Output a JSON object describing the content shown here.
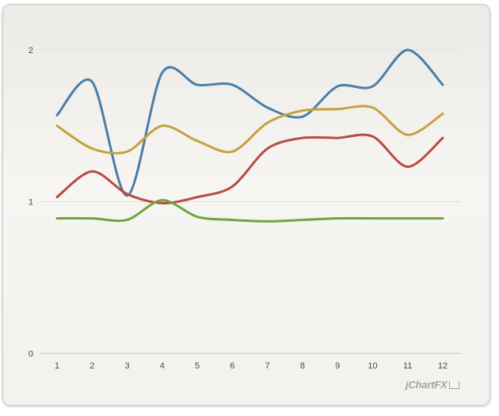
{
  "chart_data": {
    "type": "line",
    "title": "",
    "xlabel": "",
    "ylabel": "",
    "categories": [
      "1",
      "2",
      "3",
      "4",
      "5",
      "6",
      "7",
      "8",
      "9",
      "10",
      "11",
      "12"
    ],
    "ylim": [
      0,
      2
    ],
    "y_ticks": [
      "0",
      "1",
      "2"
    ],
    "grid": "horizontal",
    "smooth": true,
    "series": [
      {
        "color": "#4a7ea6",
        "values": [
          1.57,
          1.79,
          1.04,
          1.85,
          1.77,
          1.77,
          1.62,
          1.56,
          1.76,
          1.76,
          2.0,
          1.77
        ]
      },
      {
        "color": "#c4a23e",
        "values": [
          1.5,
          1.35,
          1.33,
          1.5,
          1.4,
          1.33,
          1.52,
          1.6,
          1.61,
          1.62,
          1.44,
          1.58
        ]
      },
      {
        "color": "#b84a44",
        "values": [
          1.03,
          1.2,
          1.05,
          0.99,
          1.03,
          1.1,
          1.35,
          1.42,
          1.42,
          1.43,
          1.23,
          1.42
        ]
      },
      {
        "color": "#6fa53e",
        "values": [
          0.89,
          0.89,
          0.88,
          1.01,
          0.9,
          0.88,
          0.87,
          0.88,
          0.89,
          0.89,
          0.89,
          0.89
        ]
      }
    ]
  },
  "branding": {
    "logo_text": "jChartFX"
  }
}
